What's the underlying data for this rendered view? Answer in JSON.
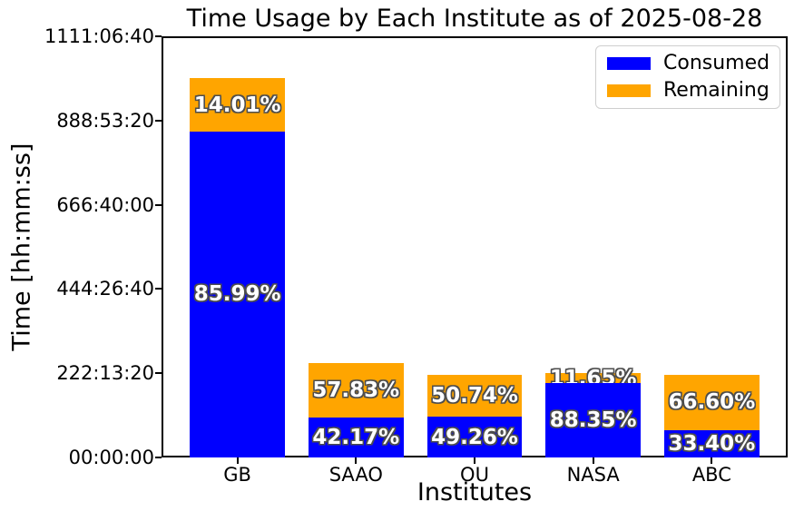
{
  "chart_data": {
    "type": "bar",
    "stacked": true,
    "title": "Time Usage by Each Institute as of 2025-08-28",
    "xlabel": "Institutes",
    "ylabel": "Time [hh:mm:ss]",
    "categories": [
      "GB",
      "SAAO",
      "OU",
      "NASA",
      "ABC"
    ],
    "series": [
      {
        "name": "Consumed",
        "color": "#0000ff",
        "percents": [
          85.99,
          42.17,
          49.26,
          88.35,
          33.4
        ],
        "percent_labels": [
          "85.99%",
          "42.17%",
          "49.26%",
          "88.35%",
          "33.40%"
        ]
      },
      {
        "name": "Remaining",
        "color": "#ffa500",
        "percents": [
          14.01,
          57.83,
          50.74,
          11.65,
          66.6
        ],
        "percent_labels": [
          "14.01%",
          "57.83%",
          "50.74%",
          "11.65%",
          "66.60%"
        ]
      }
    ],
    "total_seconds_estimated": [
      3600000,
      900000,
      785000,
      800000,
      785000
    ],
    "ylim_seconds": [
      0,
      4000000
    ],
    "yticks": [
      "00:00:00",
      "222:13:20",
      "444:26:40",
      "666:40:00",
      "888:53:20",
      "1111:06:40"
    ],
    "grid": false,
    "legend": {
      "position": "upper right",
      "entries": [
        {
          "label": "Consumed",
          "color": "#0000ff"
        },
        {
          "label": "Remaining",
          "color": "#ffa500"
        }
      ]
    }
  },
  "colors": {
    "consumed": "#0000ff",
    "remaining": "#ffa500",
    "text": "#000000",
    "spine": "#000000",
    "legend_border": "#cfcfcf",
    "background": "#ffffff"
  }
}
